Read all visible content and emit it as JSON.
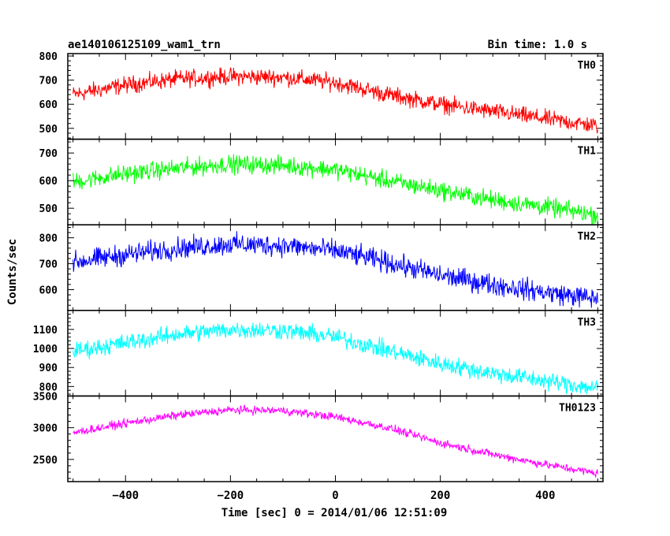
{
  "header": {
    "title": "ae140106125109_wam1_trn",
    "bin_time": "Bin time: 1.0 s"
  },
  "axes": {
    "xlabel": "Time [sec] 0 = 2014/01/06 12:51:09",
    "ylabel": "Counts/sec"
  },
  "chart_data": {
    "type": "line",
    "x_range": [
      -510,
      510
    ],
    "x_ticks": [
      -400,
      -200,
      0,
      200,
      400
    ],
    "x_tick_labels": [
      "−400",
      "−200",
      "0",
      "200",
      "400"
    ],
    "data_x_range": [
      -500,
      500
    ],
    "bin_time_s": 1.0,
    "panels": [
      {
        "name": "TH0",
        "color": "#ff0000",
        "ylim": [
          455,
          810
        ],
        "y_ticks": [
          500,
          600,
          700,
          800
        ],
        "y_tick_labels": [
          "500",
          "600",
          "700",
          "800"
        ],
        "trend_x": [
          -500,
          -400,
          -300,
          -200,
          -100,
          0,
          100,
          200,
          300,
          400,
          500
        ],
        "trend_y": [
          640,
          680,
          705,
          715,
          712,
          690,
          640,
          600,
          570,
          540,
          510
        ],
        "noise": 30
      },
      {
        "name": "TH1",
        "color": "#00ff00",
        "ylim": [
          440,
          750
        ],
        "y_ticks": [
          500,
          600,
          700
        ],
        "y_tick_labels": [
          "500",
          "600",
          "700"
        ],
        "trend_x": [
          -500,
          -400,
          -300,
          -200,
          -100,
          0,
          100,
          200,
          300,
          400,
          500
        ],
        "trend_y": [
          595,
          625,
          645,
          660,
          655,
          640,
          600,
          565,
          530,
          505,
          475
        ],
        "noise": 28
      },
      {
        "name": "TH2",
        "color": "#0000ff",
        "ylim": [
          520,
          850
        ],
        "y_ticks": [
          600,
          700,
          800
        ],
        "y_tick_labels": [
          "600",
          "700",
          "800"
        ],
        "trend_x": [
          -500,
          -400,
          -300,
          -200,
          -100,
          0,
          100,
          200,
          300,
          400,
          500
        ],
        "trend_y": [
          705,
          735,
          760,
          775,
          770,
          750,
          705,
          655,
          620,
          590,
          565
        ],
        "noise": 35
      },
      {
        "name": "TH3",
        "color": "#00ffff",
        "ylim": [
          750,
          1200
        ],
        "y_ticks": [
          800,
          900,
          1000,
          1100
        ],
        "y_tick_labels": [
          "800",
          "900",
          "1000",
          "1100"
        ],
        "trend_x": [
          -500,
          -400,
          -300,
          -200,
          -100,
          0,
          100,
          200,
          300,
          400,
          500
        ],
        "trend_y": [
          985,
          1030,
          1075,
          1100,
          1095,
          1060,
          990,
          920,
          870,
          830,
          790
        ],
        "noise": 40
      },
      {
        "name": "TH0123",
        "color": "#ff00ff",
        "ylim": [
          2150,
          3500
        ],
        "y_ticks": [
          2500,
          3000,
          3500
        ],
        "y_tick_labels": [
          "2500",
          "3000",
          "3500"
        ],
        "trend_x": [
          -500,
          -400,
          -300,
          -200,
          -100,
          0,
          100,
          200,
          300,
          400,
          500
        ],
        "trend_y": [
          2920,
          3070,
          3200,
          3280,
          3270,
          3170,
          3000,
          2760,
          2580,
          2420,
          2280
        ],
        "noise": 55
      }
    ]
  }
}
